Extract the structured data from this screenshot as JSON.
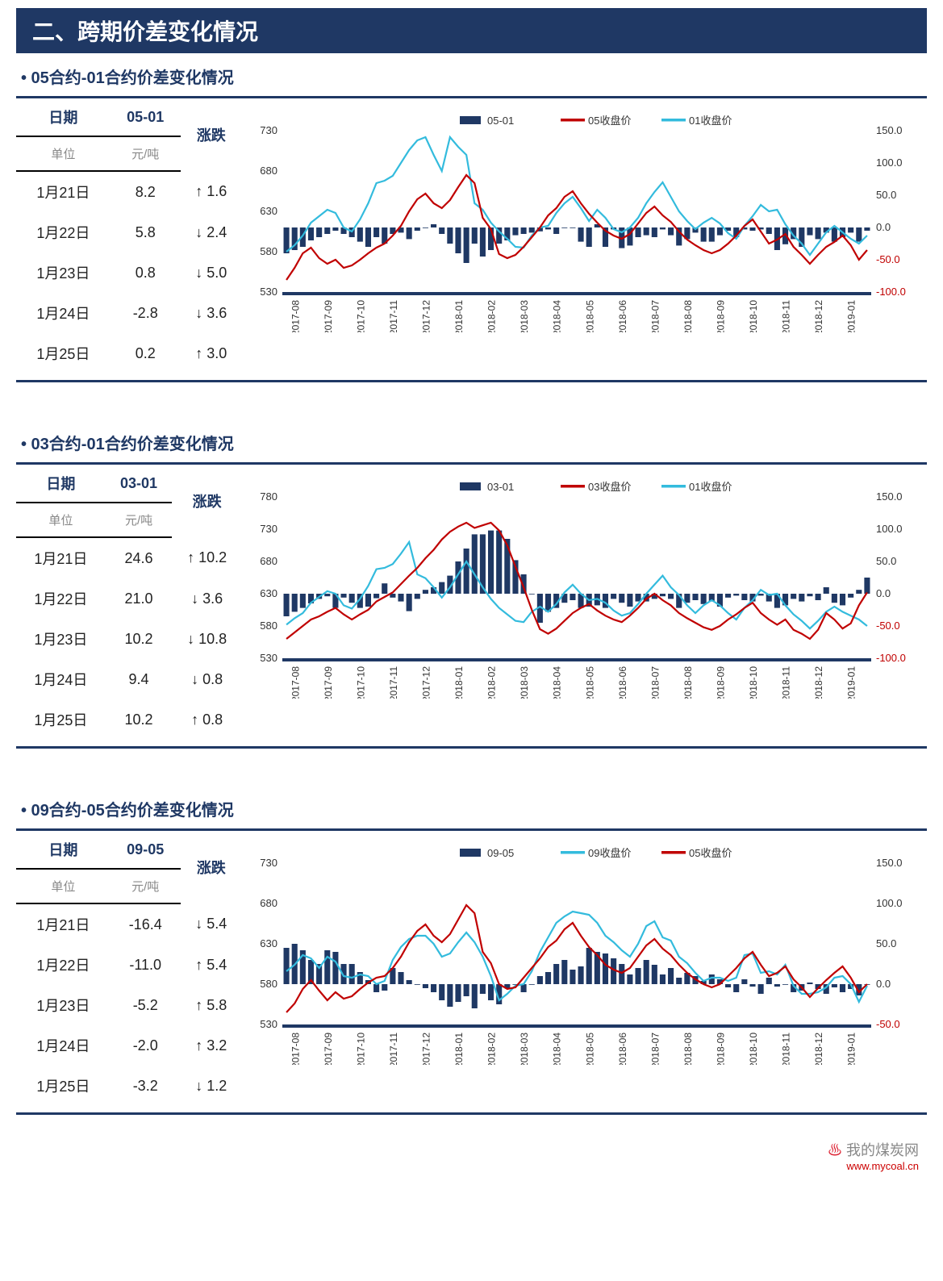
{
  "page_title": "二、跨期价差变化情况",
  "watermark": {
    "text": "我的煤炭网",
    "url": "www.mycoal.cn"
  },
  "colors": {
    "header_bg": "#1f3864",
    "header_fg": "#ffffff",
    "table_header_fg": "#1f3864",
    "table_subheader_fg": "#888888",
    "rule": "#1f3864",
    "chg_up": "#c00000",
    "chg_down": "#2e75b6",
    "bar_color": "#1f3864",
    "axis_color": "#1f3864",
    "line1_color": "#c00000",
    "line2_color": "#33bbdd",
    "tick_font_size": 11
  },
  "common_chart": {
    "widthpx": 820,
    "heightpx": 300,
    "yL_label_fontsize": 14,
    "yR_label_fontsize": 14,
    "x_labels": [
      "2017-08",
      "2017-09",
      "2017-10",
      "2017-11",
      "2017-12",
      "2018-01",
      "2018-02",
      "2018-03",
      "2018-04",
      "2018-05",
      "2018-06",
      "2018-07",
      "2018-08",
      "2018-09",
      "2018-10",
      "2018-11",
      "2018-12",
      "2019-01"
    ]
  },
  "sections": [
    {
      "id": "p1",
      "sub_title": "• 05合约-01合约价差变化情况",
      "table": {
        "col_date": "日期",
        "col_val": "05-01",
        "col_chg": "涨跌",
        "unit_label": "单位",
        "unit_value": "元/吨",
        "rows": [
          {
            "date": "1月21日",
            "val": "8.2",
            "chg": "1.6",
            "dir": "up"
          },
          {
            "date": "1月22日",
            "val": "5.8",
            "chg": "2.4",
            "dir": "down"
          },
          {
            "date": "1月23日",
            "val": "0.8",
            "chg": "5.0",
            "dir": "down"
          },
          {
            "date": "1月24日",
            "val": "-2.8",
            "chg": "3.6",
            "dir": "down"
          },
          {
            "date": "1月25日",
            "val": "0.2",
            "chg": "3.0",
            "dir": "up"
          }
        ]
      },
      "chart": {
        "legend": {
          "bar": "05-01",
          "line1": "05收盘价",
          "line2": "01收盘价"
        },
        "yL": {
          "min": 530,
          "max": 730,
          "step": 50,
          "ticks": [
            530,
            580,
            630,
            680,
            730
          ]
        },
        "yR": {
          "min": -100,
          "max": 150,
          "step": 50,
          "ticks": [
            -100.0,
            -50.0,
            0.0,
            50.0,
            100.0,
            150.0
          ]
        },
        "bars_per_month": 4,
        "bars": [
          -40,
          -35,
          -30,
          -20,
          -15,
          -10,
          -5,
          -10,
          -15,
          -22,
          -30,
          -15,
          -25,
          -10,
          -8,
          -18,
          -5,
          0,
          5,
          -10,
          -25,
          -40,
          -55,
          -25,
          -45,
          -35,
          -25,
          -20,
          -12,
          -10,
          -8,
          -6,
          -3,
          -10,
          0,
          0,
          -22,
          -30,
          5,
          -30,
          -3,
          -32,
          -28,
          -15,
          -12,
          -15,
          -3,
          -12,
          -28,
          -18,
          -8,
          -22,
          -22,
          -12,
          -5,
          -15,
          -3,
          -5,
          -3,
          -10,
          -35,
          -26,
          -18,
          -30,
          -12,
          -18,
          -8,
          -22,
          -15,
          -8,
          -22,
          -5
        ],
        "line1": [
          545,
          560,
          578,
          585,
          572,
          565,
          570,
          560,
          563,
          570,
          578,
          585,
          590,
          600,
          612,
          630,
          645,
          652,
          640,
          634,
          644,
          660,
          675,
          665,
          622,
          608,
          577,
          572,
          576,
          586,
          598,
          610,
          625,
          634,
          648,
          655,
          640,
          627,
          616,
          606,
          600,
          596,
          602,
          615,
          628,
          636,
          625,
          617,
          605,
          595,
          588,
          582,
          578,
          582,
          590,
          600,
          612,
          620,
          605,
          590,
          595,
          602,
          586,
          576,
          565,
          576,
          586,
          592,
          600,
          588,
          570,
          582
        ],
        "line2": [
          580,
          588,
          600,
          616,
          624,
          632,
          628,
          610,
          605,
          620,
          640,
          665,
          668,
          674,
          690,
          706,
          718,
          722,
          700,
          680,
          722,
          710,
          700,
          640,
          632,
          616,
          605,
          596,
          586,
          585,
          600,
          610,
          612,
          628,
          640,
          648,
          634,
          618,
          632,
          622,
          608,
          604,
          610,
          622,
          640,
          654,
          666,
          648,
          630,
          618,
          608,
          616,
          622,
          615,
          603,
          596,
          612,
          624,
          638,
          630,
          632,
          614,
          600,
          590,
          576,
          590,
          604,
          612,
          604,
          596,
          590,
          600
        ]
      }
    },
    {
      "id": "p2",
      "sub_title": "• 03合约-01合约价差变化情况",
      "table": {
        "col_date": "日期",
        "col_val": "03-01",
        "col_chg": "涨跌",
        "unit_label": "单位",
        "unit_value": "元/吨",
        "rows": [
          {
            "date": "1月21日",
            "val": "24.6",
            "chg": "10.2",
            "dir": "up"
          },
          {
            "date": "1月22日",
            "val": "21.0",
            "chg": "3.6",
            "dir": "down"
          },
          {
            "date": "1月23日",
            "val": "10.2",
            "chg": "10.8",
            "dir": "down"
          },
          {
            "date": "1月24日",
            "val": "9.4",
            "chg": "0.8",
            "dir": "down"
          },
          {
            "date": "1月25日",
            "val": "10.2",
            "chg": "0.8",
            "dir": "up"
          }
        ]
      },
      "chart": {
        "legend": {
          "bar": "03-01",
          "line1": "03收盘价",
          "line2": "01收盘价"
        },
        "yL": {
          "min": 530,
          "max": 780,
          "step": 50,
          "ticks": [
            530,
            580,
            630,
            680,
            730,
            780
          ]
        },
        "yR": {
          "min": -100,
          "max": 150,
          "step": 50,
          "ticks": [
            -100.0,
            -50.0,
            0.0,
            50.0,
            100.0,
            150.0
          ]
        },
        "bars_per_month": 4,
        "bars": [
          -35,
          -28,
          -22,
          -15,
          -8,
          -4,
          -22,
          -6,
          -14,
          -22,
          -20,
          -7,
          16,
          -6,
          -12,
          -27,
          -8,
          6,
          10,
          18,
          28,
          50,
          70,
          92,
          92,
          98,
          98,
          85,
          52,
          30,
          0,
          -45,
          -28,
          -22,
          -14,
          -10,
          -22,
          -20,
          -18,
          -22,
          -8,
          -14,
          -20,
          -12,
          -12,
          -8,
          -4,
          -8,
          -22,
          -14,
          -10,
          -16,
          -12,
          -20,
          -6,
          -3,
          -10,
          -12,
          -3,
          -12,
          -22,
          -18,
          -8,
          -12,
          -4,
          -10,
          10,
          -14,
          -18,
          -6,
          6,
          25
        ],
        "line1": [
          560,
          570,
          580,
          590,
          595,
          602,
          608,
          598,
          590,
          598,
          605,
          618,
          625,
          632,
          645,
          658,
          670,
          685,
          698,
          714,
          726,
          734,
          740,
          732,
          736,
          740,
          728,
          705,
          672,
          640,
          605,
          575,
          568,
          576,
          588,
          600,
          608,
          614,
          604,
          596,
          590,
          586,
          596,
          608,
          622,
          630,
          620,
          612,
          600,
          592,
          585,
          578,
          574,
          580,
          590,
          598,
          608,
          616,
          600,
          590,
          582,
          590,
          574,
          568,
          560,
          574,
          600,
          590,
          576,
          584,
          612,
          632
        ],
        "line2": [
          582,
          592,
          600,
          616,
          625,
          634,
          630,
          612,
          607,
          622,
          642,
          668,
          670,
          676,
          692,
          710,
          660,
          654,
          640,
          624,
          640,
          660,
          680,
          660,
          640,
          622,
          608,
          598,
          588,
          586,
          602,
          610,
          602,
          614,
          632,
          644,
          630,
          620,
          622,
          616,
          604,
          596,
          600,
          614,
          630,
          644,
          658,
          640,
          628,
          612,
          600,
          612,
          620,
          612,
          600,
          590,
          608,
          620,
          636,
          628,
          630,
          612,
          598,
          588,
          576,
          588,
          602,
          610,
          602,
          596,
          590,
          580
        ]
      }
    },
    {
      "id": "p3",
      "sub_title": "• 09合约-05合约价差变化情况",
      "table": {
        "col_date": "日期",
        "col_val": "09-05",
        "col_chg": "涨跌",
        "unit_label": "单位",
        "unit_value": "元/吨",
        "rows": [
          {
            "date": "1月21日",
            "val": "-16.4",
            "chg": "5.4",
            "dir": "down"
          },
          {
            "date": "1月22日",
            "val": "-11.0",
            "chg": "5.4",
            "dir": "up"
          },
          {
            "date": "1月23日",
            "val": "-5.2",
            "chg": "5.8",
            "dir": "up"
          },
          {
            "date": "1月24日",
            "val": "-2.0",
            "chg": "3.2",
            "dir": "up"
          },
          {
            "date": "1月25日",
            "val": "-3.2",
            "chg": "1.2",
            "dir": "down"
          }
        ]
      },
      "chart": {
        "legend": {
          "bar": "09-05",
          "line2": "09收盘价",
          "line1": "05收盘价"
        },
        "legend_order": [
          "bar",
          "line2",
          "line1"
        ],
        "yL": {
          "min": 530,
          "max": 730,
          "step": 50,
          "ticks": [
            530,
            580,
            630,
            680,
            730
          ]
        },
        "yR": {
          "min": -50,
          "max": 150,
          "step": 50,
          "ticks": [
            -50.0,
            0.0,
            50.0,
            100.0,
            150.0
          ]
        },
        "bars_per_month": 4,
        "bars": [
          45,
          50,
          42,
          30,
          25,
          42,
          40,
          25,
          25,
          15,
          5,
          -10,
          -8,
          20,
          15,
          5,
          0,
          -5,
          -10,
          -20,
          -28,
          -22,
          -15,
          -30,
          -12,
          -20,
          -25,
          -5,
          0,
          -10,
          0,
          10,
          15,
          25,
          30,
          18,
          22,
          45,
          40,
          38,
          32,
          25,
          12,
          20,
          30,
          24,
          12,
          20,
          8,
          14,
          10,
          4,
          12,
          6,
          -4,
          -10,
          6,
          -3,
          -12,
          8,
          -3,
          0,
          -10,
          -8,
          2,
          -6,
          -12,
          -4,
          -10,
          -6,
          -14,
          0
        ],
        "line1": [
          545,
          556,
          574,
          585,
          572,
          560,
          570,
          562,
          565,
          574,
          582,
          588,
          590,
          600,
          614,
          632,
          646,
          654,
          640,
          632,
          642,
          660,
          678,
          668,
          620,
          606,
          580,
          574,
          576,
          588,
          600,
          612,
          626,
          634,
          648,
          656,
          640,
          626,
          616,
          604,
          598,
          594,
          600,
          614,
          628,
          636,
          624,
          616,
          604,
          594,
          586,
          580,
          576,
          580,
          590,
          600,
          612,
          620,
          604,
          590,
          594,
          602,
          586,
          576,
          564,
          575,
          585,
          594,
          602,
          588,
          570,
          580
        ],
        "line2": [
          596,
          604,
          616,
          612,
          600,
          614,
          608,
          590,
          588,
          592,
          590,
          580,
          584,
          610,
          626,
          636,
          640,
          640,
          630,
          614,
          618,
          632,
          644,
          632,
          614,
          590,
          560,
          568,
          578,
          580,
          596,
          620,
          638,
          656,
          664,
          670,
          668,
          666,
          656,
          640,
          632,
          622,
          614,
          630,
          652,
          658,
          638,
          634,
          614,
          606,
          594,
          584,
          588,
          588,
          584,
          588,
          616,
          618,
          594,
          596,
          592,
          604,
          578,
          568,
          568,
          570,
          576,
          588,
          590,
          580,
          558,
          578
        ]
      }
    }
  ]
}
